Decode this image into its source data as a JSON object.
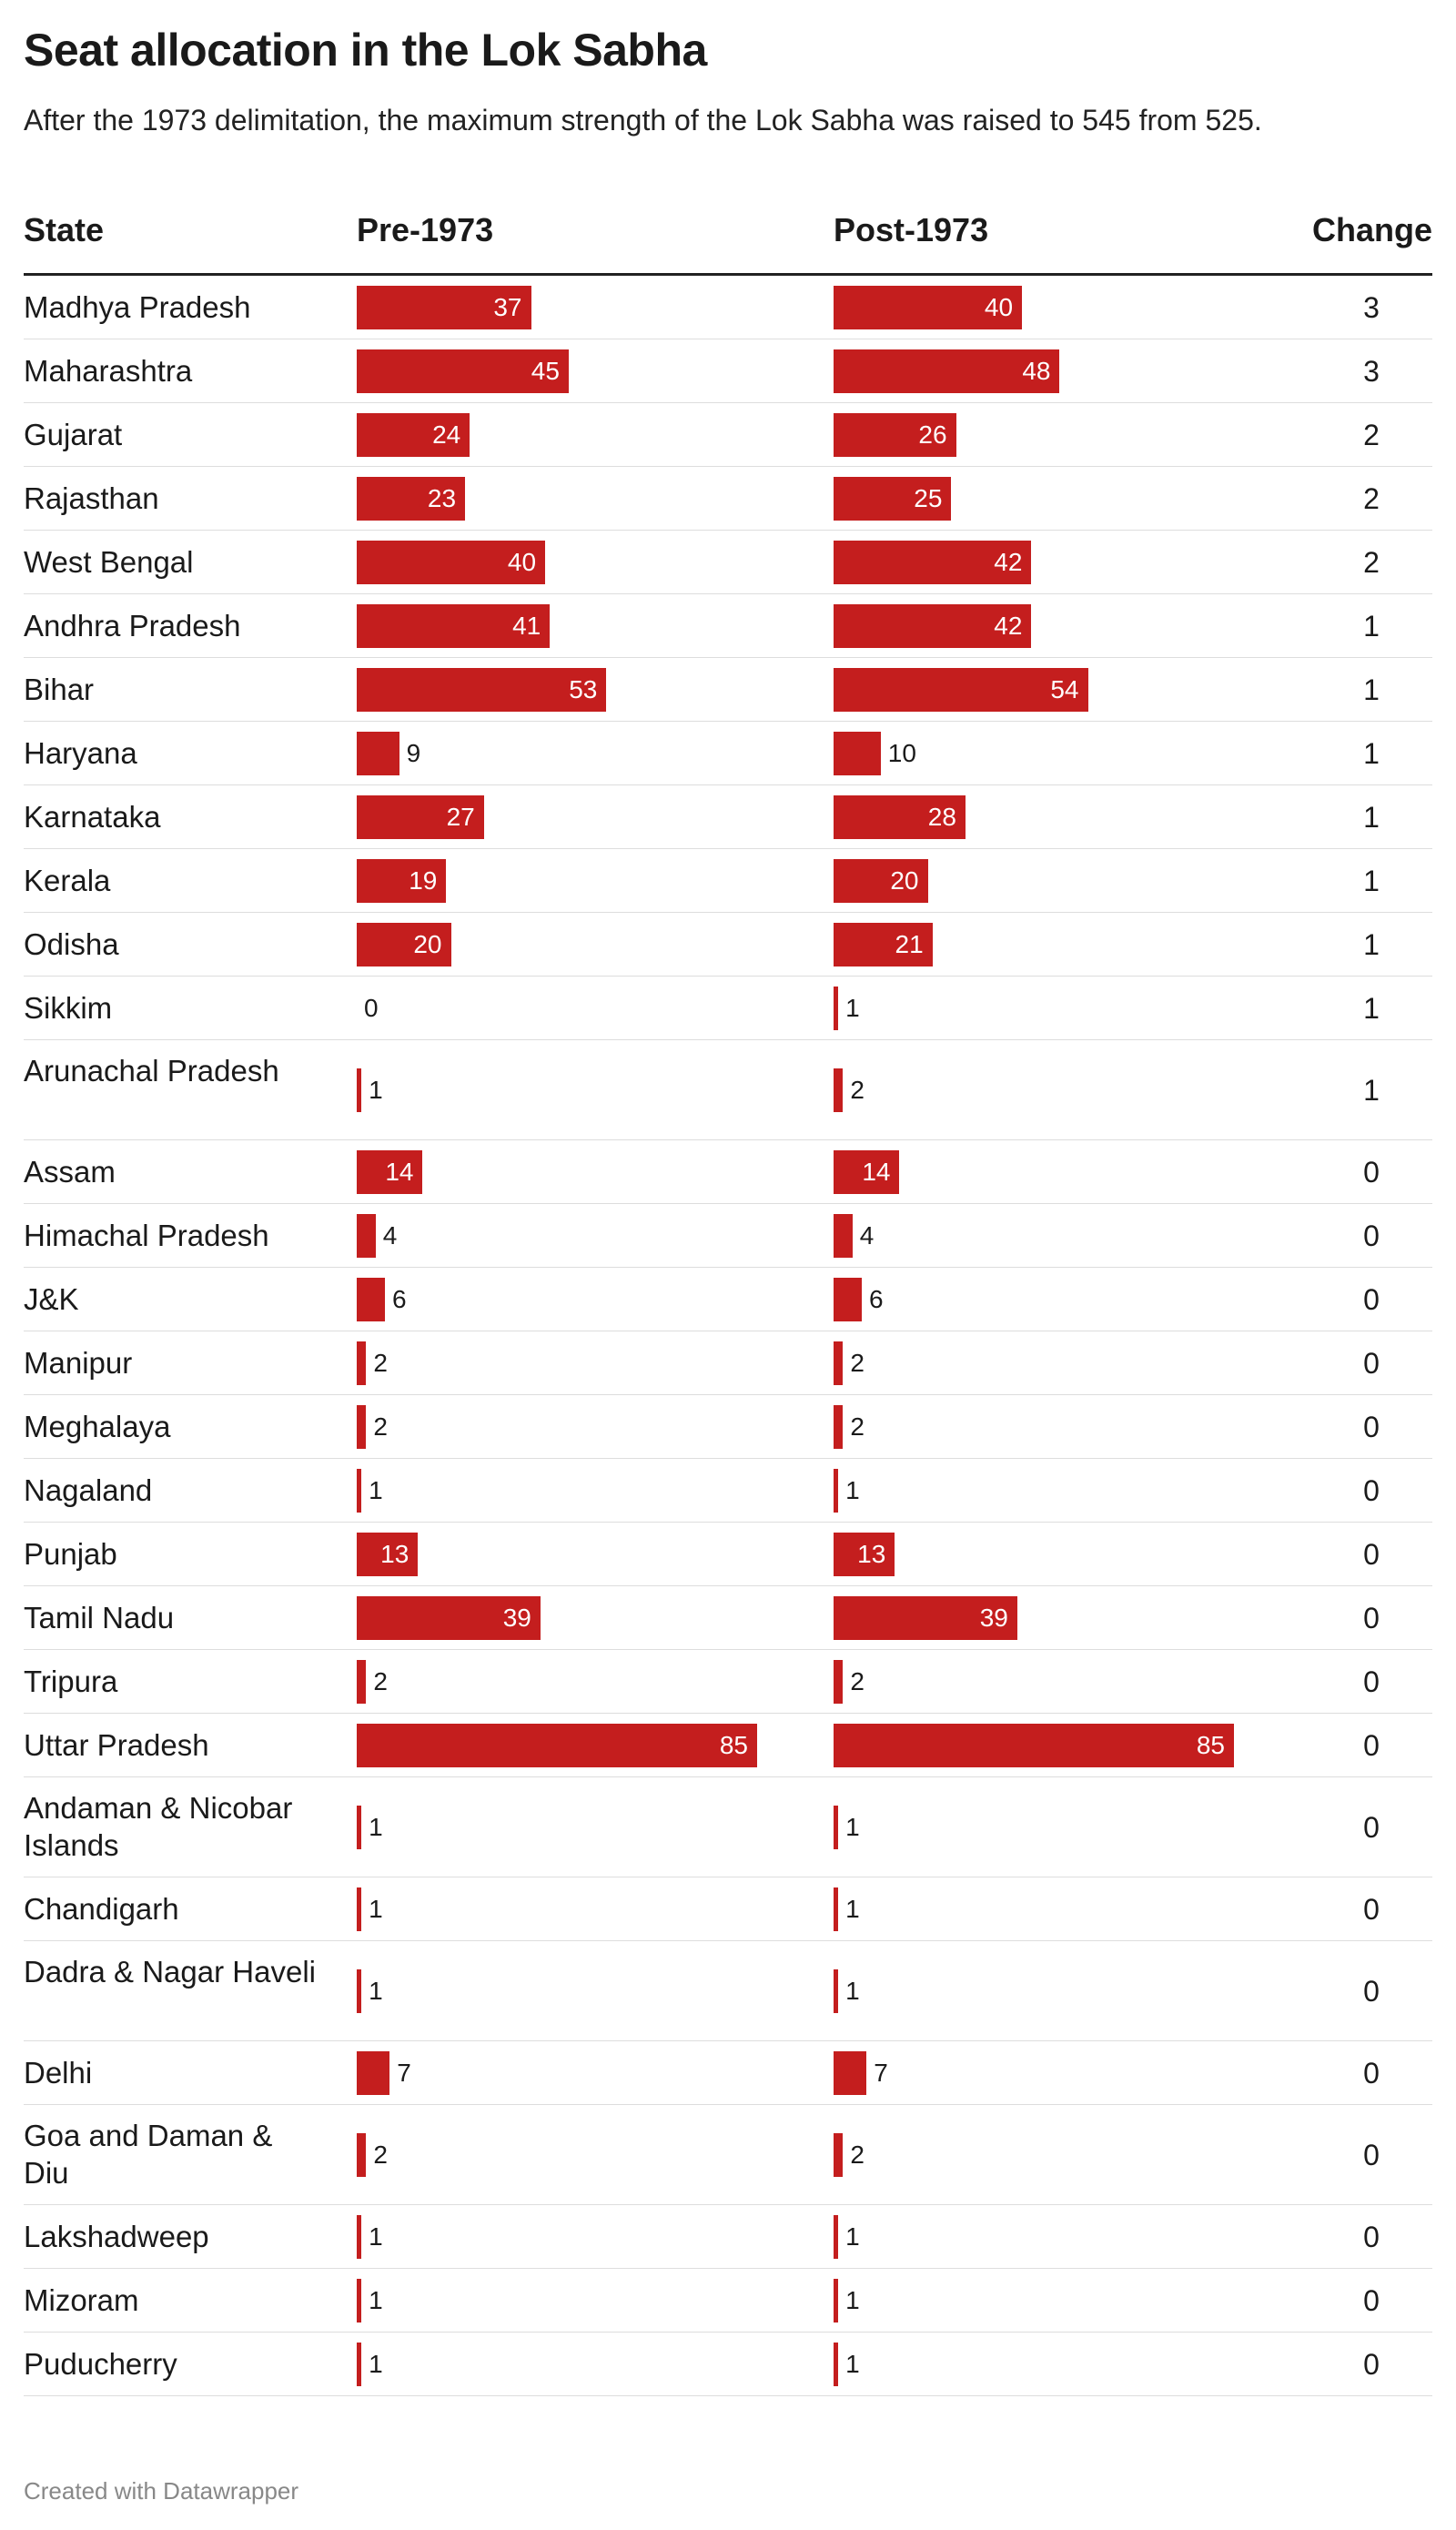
{
  "title": "Seat allocation in the Lok Sabha",
  "subtitle": "After the 1973 delimitation, the maximum strength of the Lok Sabha was raised to 545 from 525.",
  "footer": "Created with Datawrapper",
  "colors": {
    "bar": "#c41e1e",
    "text": "#1a1a1a",
    "footer": "#888888"
  },
  "chart_data": {
    "type": "table",
    "columns": [
      "State",
      "Pre-1973",
      "Post-1973",
      "Change"
    ],
    "rows": [
      {
        "state": "Madhya Pradesh",
        "pre": 37,
        "post": 40,
        "change": 3
      },
      {
        "state": "Maharashtra",
        "pre": 45,
        "post": 48,
        "change": 3
      },
      {
        "state": "Gujarat",
        "pre": 24,
        "post": 26,
        "change": 2
      },
      {
        "state": "Rajasthan",
        "pre": 23,
        "post": 25,
        "change": 2
      },
      {
        "state": "West Bengal",
        "pre": 40,
        "post": 42,
        "change": 2
      },
      {
        "state": "Andhra Pradesh",
        "pre": 41,
        "post": 42,
        "change": 1
      },
      {
        "state": "Bihar",
        "pre": 53,
        "post": 54,
        "change": 1
      },
      {
        "state": "Haryana",
        "pre": 9,
        "post": 10,
        "change": 1
      },
      {
        "state": "Karnataka",
        "pre": 27,
        "post": 28,
        "change": 1
      },
      {
        "state": "Kerala",
        "pre": 19,
        "post": 20,
        "change": 1
      },
      {
        "state": "Odisha",
        "pre": 20,
        "post": 21,
        "change": 1
      },
      {
        "state": "Sikkim",
        "pre": 0,
        "post": 1,
        "change": 1
      },
      {
        "state": "Arunachal Pradesh",
        "pre": 1,
        "post": 2,
        "change": 1
      },
      {
        "state": "Assam",
        "pre": 14,
        "post": 14,
        "change": 0
      },
      {
        "state": "Himachal Pradesh",
        "pre": 4,
        "post": 4,
        "change": 0
      },
      {
        "state": "J&K",
        "pre": 6,
        "post": 6,
        "change": 0
      },
      {
        "state": "Manipur",
        "pre": 2,
        "post": 2,
        "change": 0
      },
      {
        "state": "Meghalaya",
        "pre": 2,
        "post": 2,
        "change": 0
      },
      {
        "state": "Nagaland",
        "pre": 1,
        "post": 1,
        "change": 0
      },
      {
        "state": "Punjab",
        "pre": 13,
        "post": 13,
        "change": 0
      },
      {
        "state": "Tamil Nadu",
        "pre": 39,
        "post": 39,
        "change": 0
      },
      {
        "state": "Tripura",
        "pre": 2,
        "post": 2,
        "change": 0
      },
      {
        "state": "Uttar Pradesh",
        "pre": 85,
        "post": 85,
        "change": 0
      },
      {
        "state": "Andaman & Nicobar Islands",
        "pre": 1,
        "post": 1,
        "change": 0
      },
      {
        "state": "Chandigarh",
        "pre": 1,
        "post": 1,
        "change": 0
      },
      {
        "state": "Dadra & Nagar Haveli",
        "pre": 1,
        "post": 1,
        "change": 0
      },
      {
        "state": "Delhi",
        "pre": 7,
        "post": 7,
        "change": 0
      },
      {
        "state": "Goa and Daman & Diu",
        "pre": 2,
        "post": 2,
        "change": 0
      },
      {
        "state": "Lakshadweep",
        "pre": 1,
        "post": 1,
        "change": 0
      },
      {
        "state": "Mizoram",
        "pre": 1,
        "post": 1,
        "change": 0
      },
      {
        "state": "Puducherry",
        "pre": 1,
        "post": 1,
        "change": 0
      }
    ],
    "value_range": [
      0,
      85
    ]
  }
}
